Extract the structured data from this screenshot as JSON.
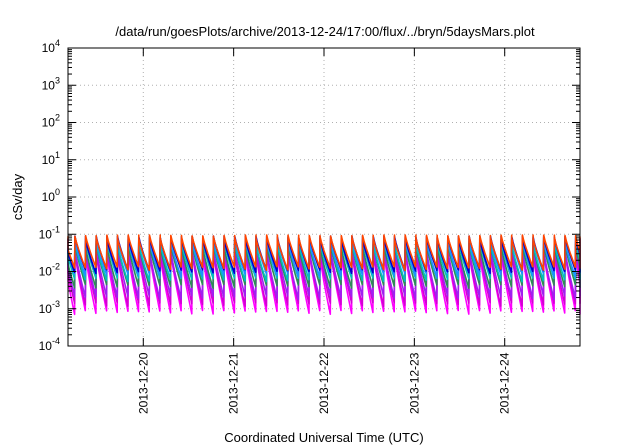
{
  "chart_data": {
    "type": "line",
    "title": "/data/run/goesPlots/archive/2013-12-24/17:00/flux/../bryn/5daysMars.plot",
    "xlabel": "Coordinated Universal Time (UTC)",
    "ylabel": "cSv/day",
    "y_scale": "log",
    "ylim_exponents": [
      -4,
      4
    ],
    "y_ticks": [
      {
        "base": "10",
        "exp": "-4"
      },
      {
        "base": "10",
        "exp": "-3"
      },
      {
        "base": "10",
        "exp": "-2"
      },
      {
        "base": "10",
        "exp": "-1"
      },
      {
        "base": "10",
        "exp": "0"
      },
      {
        "base": "10",
        "exp": "1"
      },
      {
        "base": "10",
        "exp": "2"
      },
      {
        "base": "10",
        "exp": "3"
      },
      {
        "base": "10",
        "exp": "4"
      }
    ],
    "xlim": [
      "2013-12-19 04:00",
      "2013-12-24 20:00"
    ],
    "x_ticks": [
      "2013-12-20",
      "2013-12-21",
      "2013-12-22",
      "2013-12-23",
      "2013-12-24"
    ],
    "grid": true,
    "sawtooth_period_hours": 2.83,
    "series": [
      {
        "color": "#ff00ff",
        "peak": 0.03,
        "trough": 0.0008
      },
      {
        "color": "#d400d4",
        "peak": 0.035,
        "trough": 0.0013
      },
      {
        "color": "#a020f0",
        "peak": 0.04,
        "trough": 0.002
      },
      {
        "color": "#2e8b57",
        "peak": 0.05,
        "trough": 0.004
      },
      {
        "color": "#00bfbf",
        "peak": 0.06,
        "trough": 0.006
      },
      {
        "color": "#1e90ff",
        "peak": 0.07,
        "trough": 0.008
      },
      {
        "color": "#0000cd",
        "peak": 0.08,
        "trough": 0.01
      },
      {
        "color": "#ff4500",
        "peak": 0.085,
        "trough": 0.012
      }
    ]
  }
}
